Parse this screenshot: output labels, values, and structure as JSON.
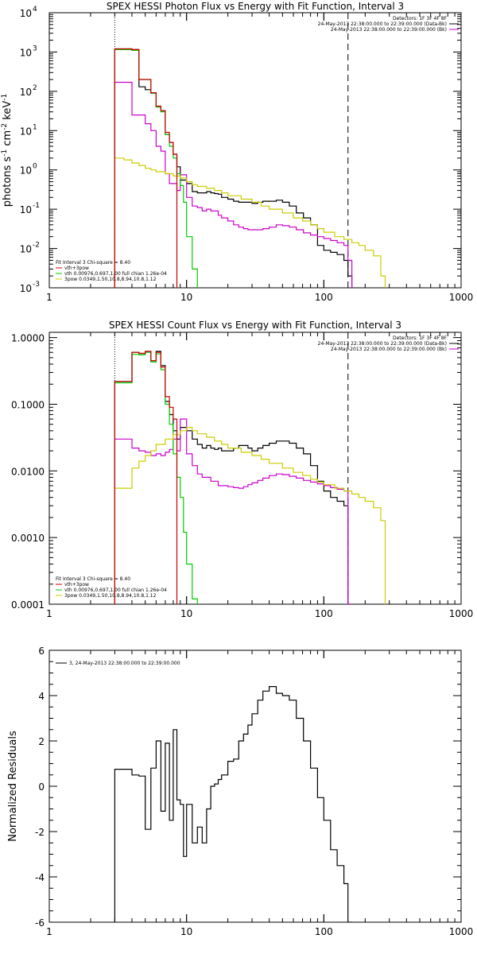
{
  "chart_data": [
    {
      "type": "line",
      "title": "SPEX HESSI Photon Flux vs Energy with Fit Function, Interval 3",
      "ylabel_main": "photons s",
      "ylabel_sup1": "-1",
      "ylabel_mid": " cm",
      "ylabel_sup2": "-2",
      "ylabel_end": " keV",
      "ylabel_sup3": "-1",
      "xscale": "log",
      "yscale": "log",
      "xlim": [
        1,
        1000
      ],
      "ylim": [
        0.001,
        10000
      ],
      "xticks": [
        "1",
        "10",
        "100",
        "1000"
      ],
      "yticks": [
        {
          "b": "10",
          "e": "-3",
          "v": 0.001
        },
        {
          "b": "10",
          "e": "-2",
          "v": 0.01
        },
        {
          "b": "10",
          "e": "-1",
          "v": 0.1
        },
        {
          "b": "10",
          "e": "0",
          "v": 1
        },
        {
          "b": "10",
          "e": "1",
          "v": 10
        },
        {
          "b": "10",
          "e": "2",
          "v": 100
        },
        {
          "b": "10",
          "e": "3",
          "v": 1000
        },
        {
          "b": "10",
          "e": "4",
          "v": 10000
        }
      ],
      "vlines": [
        {
          "x": 3,
          "style": "dotted"
        },
        {
          "x": 150,
          "style": "dashed"
        }
      ],
      "info": [
        "Detectors: 1F 3F 4F 8F",
        "24-May-2013 22:38:00.000 to 22:39:00.000 (Data-Bk)",
        "24-May-2013 22:38:00.000 to 22:39:00.000 (Bk)"
      ],
      "info_colors": [
        "#000000",
        "#000000",
        "#cc00cc"
      ],
      "legend_title": "Fit Interval 3   Chi-square = 8.40",
      "legend": [
        {
          "label": "vth+3pow",
          "color": "#cc0000"
        },
        {
          "label": "vth 0.00976,0.697,1.00   full chian 1.26e-04",
          "color": "#00cc00"
        },
        {
          "label": "3pow 0.0349,1.50,10.8,8.94,10.8,1.12",
          "color": "#cccc00"
        }
      ],
      "series": [
        {
          "name": "Data-Bk",
          "color": "#000000",
          "edges": [
            3,
            3.5,
            4,
            4.5,
            5,
            5.5,
            6,
            6.5,
            7,
            7.5,
            8,
            8.5,
            9,
            9.5,
            10,
            11,
            12,
            13,
            14,
            15,
            16,
            17,
            18,
            20,
            22,
            24,
            26,
            28,
            30,
            33,
            36,
            40,
            45,
            50,
            56,
            63,
            71,
            80,
            90,
            100,
            112,
            125,
            140,
            150,
            160
          ],
          "values": [
            1200,
            1200,
            1150,
            130,
            110,
            90,
            40,
            32,
            8,
            5,
            2.5,
            1.2,
            0.55,
            0.55,
            0.45,
            0.28,
            0.26,
            0.26,
            0.28,
            0.26,
            0.25,
            0.24,
            0.2,
            0.18,
            0.16,
            0.15,
            0.15,
            0.15,
            0.14,
            0.15,
            0.16,
            0.16,
            0.17,
            0.15,
            0.12,
            0.08,
            0.06,
            0.04,
            0.012,
            0.009,
            0.008,
            0.007,
            0.005,
            0.002
          ]
        },
        {
          "name": "Bk",
          "color": "#cc00cc",
          "edges": [
            3,
            3.5,
            4,
            4.5,
            5,
            5.5,
            6,
            6.5,
            7,
            7.5,
            8,
            8.5,
            9,
            9.5,
            10,
            11,
            12,
            13,
            14,
            15,
            16,
            17,
            18,
            20,
            22,
            24,
            26,
            28,
            30,
            33,
            36,
            40,
            45,
            50,
            56,
            63,
            71,
            80,
            90,
            100,
            112,
            125,
            140,
            150,
            160
          ],
          "values": [
            170,
            170,
            25,
            25,
            15,
            10,
            4,
            3,
            0.8,
            0.45,
            0.45,
            0.3,
            0.75,
            0.75,
            0.2,
            0.12,
            0.11,
            0.09,
            0.1,
            0.09,
            0.09,
            0.07,
            0.06,
            0.05,
            0.04,
            0.035,
            0.032,
            0.03,
            0.03,
            0.03,
            0.032,
            0.035,
            0.04,
            0.038,
            0.035,
            0.03,
            0.025,
            0.022,
            0.02,
            0.018,
            0.016,
            0.014,
            0.012,
            0.005
          ]
        },
        {
          "name": "vth",
          "color": "#00cc00",
          "edges": [
            3,
            3.5,
            4,
            4.5,
            5,
            5.5,
            6,
            6.5,
            7,
            7.5,
            8,
            8.5,
            9,
            9.5,
            10,
            11,
            12,
            13
          ],
          "values": [
            1150,
            1150,
            1100,
            200,
            200,
            90,
            40,
            30,
            8,
            4,
            2,
            0.8,
            0.4,
            0.15,
            0.02,
            0.003,
            0.0005
          ]
        },
        {
          "name": "3pow",
          "color": "#cccc00",
          "edges": [
            3,
            3.5,
            4,
            4.5,
            5,
            5.5,
            6,
            7,
            8,
            9,
            10,
            11,
            12,
            14,
            16,
            18,
            20,
            25,
            30,
            35,
            40,
            50,
            60,
            70,
            80,
            90,
            100,
            120,
            140,
            160,
            180,
            200,
            230,
            260,
            280
          ],
          "values": [
            2,
            1.8,
            1.5,
            1.3,
            1.1,
            1.0,
            0.9,
            0.8,
            0.7,
            0.62,
            0.5,
            0.42,
            0.38,
            0.34,
            0.3,
            0.26,
            0.22,
            0.18,
            0.15,
            0.12,
            0.1,
            0.08,
            0.06,
            0.05,
            0.04,
            0.032,
            0.026,
            0.02,
            0.017,
            0.014,
            0.012,
            0.009,
            0.0065,
            0.002
          ]
        },
        {
          "name": "vth+3pow",
          "color": "#cc0000",
          "edges": [
            3,
            3.5,
            4,
            4.5,
            5,
            5.5,
            6,
            6.5,
            7,
            7.5,
            8,
            8.5
          ],
          "values": [
            1200,
            1200,
            1150,
            200,
            200,
            92,
            42,
            32,
            9,
            5,
            2.5
          ]
        }
      ]
    },
    {
      "type": "line",
      "title": "SPEX HESSI Count Flux vs Energy with Fit Function, Interval 3",
      "xscale": "log",
      "yscale": "log",
      "xlim": [
        1,
        1000
      ],
      "ylim": [
        0.0001,
        1.2
      ],
      "xticks": [
        "1",
        "10",
        "100",
        "1000"
      ],
      "yticks": [
        {
          "t": "0.0001",
          "v": 0.0001
        },
        {
          "t": "0.0010",
          "v": 0.001
        },
        {
          "t": "0.0100",
          "v": 0.01
        },
        {
          "t": "0.1000",
          "v": 0.1
        },
        {
          "t": "1.0000",
          "v": 1.0
        }
      ],
      "vlines": [
        {
          "x": 3,
          "style": "dotted"
        },
        {
          "x": 150,
          "style": "dashed"
        }
      ],
      "info": [
        "Detectors: 1F 3F 4F 8F",
        "24-May-2013 22:38:00.000 to 22:39:00.000 (Data-Bk)",
        "24-May-2013 22:38:00.000 to 22:39:00.000 (Bk)"
      ],
      "info_colors": [
        "#000000",
        "#000000",
        "#cc00cc"
      ],
      "legend_title": "Fit Interval 3   Chi-square = 8.40",
      "legend": [
        {
          "label": "vth+3pow",
          "color": "#cc0000"
        },
        {
          "label": "vth 0.00976,0.697,1.00   full chian 1.26e-04",
          "color": "#00cc00"
        },
        {
          "label": "3pow 0.0349,1.50,10.8,8.94,10.8,1.12",
          "color": "#cccc00"
        }
      ],
      "series": [
        {
          "name": "Data-Bk",
          "color": "#000000",
          "edges": [
            3,
            3.5,
            4,
            4.5,
            5,
            5.5,
            6,
            6.5,
            7,
            7.5,
            8,
            8.5,
            9,
            9.5,
            10,
            11,
            12,
            13,
            14,
            15,
            16,
            17,
            18,
            20,
            22,
            24,
            26,
            28,
            30,
            33,
            36,
            40,
            45,
            50,
            56,
            63,
            71,
            80,
            90,
            100,
            112,
            125,
            140,
            150,
            160
          ],
          "values": [
            0.22,
            0.22,
            0.6,
            0.58,
            0.62,
            0.45,
            0.62,
            0.38,
            0.11,
            0.07,
            0.04,
            0.03,
            0.045,
            0.045,
            0.04,
            0.03,
            0.025,
            0.022,
            0.024,
            0.022,
            0.021,
            0.022,
            0.02,
            0.02,
            0.022,
            0.024,
            0.024,
            0.022,
            0.02,
            0.022,
            0.024,
            0.026,
            0.028,
            0.028,
            0.026,
            0.022,
            0.018,
            0.012,
            0.007,
            0.005,
            0.004,
            0.0035,
            0.003,
            0.0001
          ]
        },
        {
          "name": "Bk",
          "color": "#cc00cc",
          "edges": [
            3,
            3.5,
            4,
            4.5,
            5,
            5.5,
            6,
            6.5,
            7,
            7.5,
            8,
            8.5,
            9,
            9.5,
            10,
            11,
            12,
            13,
            14,
            15,
            16,
            17,
            18,
            20,
            22,
            24,
            26,
            28,
            30,
            33,
            36,
            40,
            45,
            50,
            56,
            63,
            71,
            80,
            90,
            100,
            112,
            125,
            140,
            150,
            160
          ],
          "values": [
            0.03,
            0.03,
            0.022,
            0.02,
            0.019,
            0.017,
            0.018,
            0.017,
            0.019,
            0.021,
            0.03,
            0.02,
            0.06,
            0.06,
            0.018,
            0.012,
            0.009,
            0.008,
            0.008,
            0.007,
            0.007,
            0.006,
            0.006,
            0.0058,
            0.0056,
            0.0055,
            0.0058,
            0.0062,
            0.0066,
            0.0072,
            0.0078,
            0.0085,
            0.009,
            0.0088,
            0.0083,
            0.0078,
            0.0072,
            0.0068,
            0.0064,
            0.006,
            0.0056,
            0.0053,
            0.005,
            0.0001
          ]
        },
        {
          "name": "vth",
          "color": "#00cc00",
          "edges": [
            3,
            3.5,
            4,
            4.5,
            5,
            5.5,
            6,
            6.5,
            7,
            7.5,
            8,
            8.5,
            9,
            9.5,
            10,
            11,
            12,
            13
          ],
          "values": [
            0.21,
            0.21,
            0.56,
            0.55,
            0.6,
            0.43,
            0.57,
            0.33,
            0.1,
            0.05,
            0.018,
            0.008,
            0.004,
            0.0012,
            0.0004,
            0.00012,
            5e-05
          ]
        },
        {
          "name": "3pow",
          "color": "#cccc00",
          "edges": [
            3,
            3.5,
            4,
            4.5,
            5,
            5.5,
            6,
            7,
            8,
            9,
            10,
            11,
            12,
            14,
            16,
            18,
            20,
            25,
            30,
            35,
            40,
            50,
            60,
            70,
            80,
            90,
            100,
            120,
            140,
            160,
            180,
            200,
            230,
            260,
            280
          ],
          "values": [
            0.0055,
            0.0055,
            0.011,
            0.014,
            0.017,
            0.02,
            0.025,
            0.03,
            0.035,
            0.04,
            0.045,
            0.04,
            0.036,
            0.032,
            0.028,
            0.025,
            0.022,
            0.019,
            0.017,
            0.015,
            0.013,
            0.011,
            0.0095,
            0.0085,
            0.0075,
            0.0068,
            0.0062,
            0.0055,
            0.005,
            0.0045,
            0.004,
            0.0035,
            0.0028,
            0.0018
          ]
        },
        {
          "name": "vth+3pow",
          "color": "#cc0000",
          "edges": [
            3,
            3.5,
            4,
            4.5,
            5,
            5.5,
            6,
            6.5,
            7,
            7.5,
            8,
            8.5
          ],
          "values": [
            0.22,
            0.22,
            0.6,
            0.58,
            0.62,
            0.45,
            0.6,
            0.36,
            0.13,
            0.09,
            0.06
          ]
        }
      ]
    },
    {
      "type": "line",
      "title": "",
      "ylabel": "Normalized Residuals",
      "xscale": "log",
      "yscale": "linear",
      "xlim": [
        1,
        1000
      ],
      "ylim": [
        -6,
        6
      ],
      "xticks": [
        "1",
        "10",
        "100",
        "1000"
      ],
      "yticks": [
        {
          "t": "-6",
          "v": -6
        },
        {
          "t": "-4",
          "v": -4
        },
        {
          "t": "-2",
          "v": -2
        },
        {
          "t": "0",
          "v": 0
        },
        {
          "t": "2",
          "v": 2
        },
        {
          "t": "4",
          "v": 4
        },
        {
          "t": "6",
          "v": 6
        }
      ],
      "legend": [
        {
          "label": "3, 24-May-2013 22:38:00.000 to 22:39:00.000",
          "color": "#000000"
        }
      ],
      "series": [
        {
          "name": "3, 24-May-2013 22:38:00.000 to 22:39:00.000",
          "color": "#000000",
          "edges": [
            3,
            3.5,
            4,
            4.5,
            5,
            5.5,
            6,
            6.5,
            7,
            7.5,
            8,
            8.5,
            9,
            9.5,
            10,
            11,
            12,
            13,
            14,
            15,
            16,
            17,
            18,
            20,
            22,
            24,
            26,
            28,
            30,
            33,
            36,
            40,
            45,
            50,
            56,
            63,
            71,
            80,
            90,
            100,
            112,
            125,
            140,
            150,
            160
          ],
          "values": [
            0.75,
            0.75,
            0.5,
            0.45,
            -1.9,
            0.8,
            2.0,
            -1.1,
            1.9,
            -1.5,
            2.5,
            -0.6,
            -0.8,
            -3.1,
            -0.8,
            -2.5,
            -1.8,
            -2.5,
            -1.0,
            0,
            0.1,
            0.3,
            0.5,
            1.1,
            1.2,
            2.0,
            2.3,
            2.7,
            3.2,
            3.8,
            4.2,
            4.4,
            4.1,
            4.0,
            3.8,
            3.0,
            2.0,
            0.8,
            -0.5,
            -1.5,
            -2.8,
            -3.5,
            -4.3,
            -6
          ]
        }
      ]
    }
  ]
}
